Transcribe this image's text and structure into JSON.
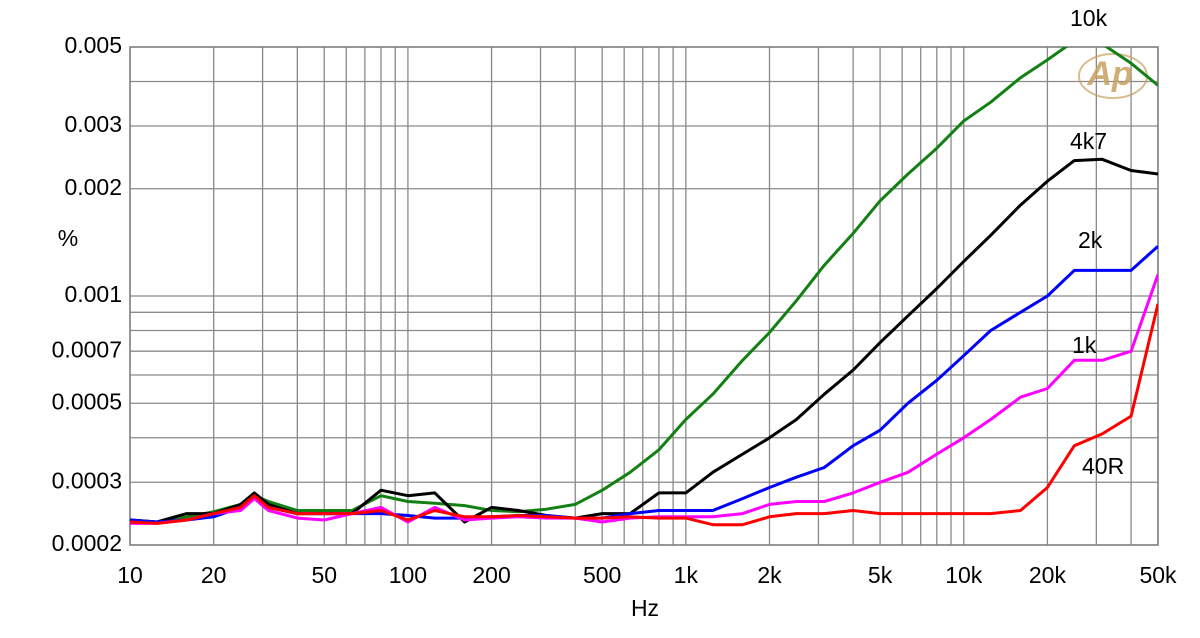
{
  "chart_data": {
    "type": "line",
    "xlabel": "Hz",
    "ylabel": "%",
    "logo": "Ap",
    "xscale": "log",
    "yscale": "log",
    "grid": true,
    "xlim": [
      10,
      50000
    ],
    "ylim": [
      0.0002,
      0.005
    ],
    "xticks": [
      10,
      20,
      50,
      100,
      200,
      500,
      {
        "value": 1000,
        "label": "1k"
      },
      {
        "value": 2000,
        "label": "2k"
      },
      {
        "value": 5000,
        "label": "5k"
      },
      {
        "value": 10000,
        "label": "10k"
      },
      {
        "value": 20000,
        "label": "20k"
      },
      {
        "value": 50000,
        "label": "50k"
      }
    ],
    "xminor": [
      30,
      40,
      60,
      70,
      80,
      90,
      300,
      400,
      600,
      700,
      800,
      900,
      3000,
      4000,
      6000,
      7000,
      8000,
      9000,
      30000,
      40000
    ],
    "yticks": [
      0.0002,
      0.0003,
      0.0005,
      0.0007,
      0.001,
      0.002,
      0.003,
      0.005
    ],
    "yminor": [
      0.0004,
      0.0006,
      0.0008,
      0.0009,
      0.004
    ],
    "x": [
      10,
      12.5,
      16,
      20,
      25,
      28,
      31.5,
      40,
      50,
      63,
      80,
      100,
      125,
      160,
      200,
      250,
      315,
      400,
      500,
      630,
      800,
      1000,
      1250,
      1600,
      2000,
      2500,
      3150,
      4000,
      5000,
      6300,
      8000,
      10000,
      12500,
      16000,
      20000,
      25000,
      31500,
      40000,
      50000
    ],
    "series": [
      {
        "name": "10k",
        "color": "#138013",
        "values": [
          0.000235,
          0.000232,
          0.00024,
          0.000248,
          0.00026,
          0.000275,
          0.000265,
          0.00025,
          0.00025,
          0.00025,
          0.000275,
          0.000265,
          0.000262,
          0.000258,
          0.00025,
          0.000248,
          0.000252,
          0.00026,
          0.000285,
          0.00032,
          0.00037,
          0.00045,
          0.00053,
          0.00066,
          0.00079,
          0.00097,
          0.00122,
          0.0015,
          0.00185,
          0.0022,
          0.0026,
          0.0031,
          0.0035,
          0.0041,
          0.0046,
          0.0052,
          0.0051,
          0.0045,
          0.0039
        ]
      },
      {
        "name": "4k7",
        "color": "#000000",
        "values": [
          0.000235,
          0.000232,
          0.000245,
          0.000245,
          0.00026,
          0.00028,
          0.00026,
          0.000245,
          0.000245,
          0.000245,
          0.000285,
          0.000275,
          0.00028,
          0.000232,
          0.000255,
          0.00025,
          0.000242,
          0.000238,
          0.000245,
          0.000245,
          0.00028,
          0.00028,
          0.00032,
          0.00036,
          0.0004,
          0.00045,
          0.00053,
          0.00062,
          0.00074,
          0.00088,
          0.00105,
          0.00125,
          0.00148,
          0.0018,
          0.0021,
          0.0024,
          0.00242,
          0.00225,
          0.0022
        ]
      },
      {
        "name": "2k",
        "color": "#0000ff",
        "values": [
          0.000235,
          0.000232,
          0.000235,
          0.00024,
          0.000255,
          0.00027,
          0.000255,
          0.000245,
          0.000245,
          0.000245,
          0.000245,
          0.000242,
          0.000238,
          0.000238,
          0.00024,
          0.000242,
          0.000242,
          0.000238,
          0.000238,
          0.000245,
          0.00025,
          0.00025,
          0.00025,
          0.00027,
          0.00029,
          0.00031,
          0.00033,
          0.00038,
          0.00042,
          0.0005,
          0.00058,
          0.00068,
          0.0008,
          0.0009,
          0.001,
          0.00118,
          0.00118,
          0.00118,
          0.00138
        ]
      },
      {
        "name": "1k",
        "color": "#ff00ff",
        "values": [
          0.00023,
          0.00023,
          0.000235,
          0.000245,
          0.00025,
          0.00027,
          0.00025,
          0.000238,
          0.000235,
          0.000245,
          0.000255,
          0.000232,
          0.000255,
          0.000235,
          0.000238,
          0.00024,
          0.000238,
          0.000238,
          0.000232,
          0.000238,
          0.00024,
          0.00024,
          0.00024,
          0.000245,
          0.00026,
          0.000265,
          0.000265,
          0.00028,
          0.0003,
          0.00032,
          0.00036,
          0.0004,
          0.00045,
          0.00052,
          0.00055,
          0.00066,
          0.00066,
          0.0007,
          0.00115
        ]
      },
      {
        "name": "40R",
        "color": "#ff0000",
        "values": [
          0.000232,
          0.00023,
          0.000235,
          0.000245,
          0.000255,
          0.000275,
          0.000255,
          0.000245,
          0.000245,
          0.000245,
          0.00025,
          0.000235,
          0.00025,
          0.00024,
          0.00024,
          0.000242,
          0.00024,
          0.000238,
          0.000238,
          0.00024,
          0.000238,
          0.000238,
          0.000228,
          0.000228,
          0.00024,
          0.000245,
          0.000245,
          0.00025,
          0.000245,
          0.000245,
          0.000245,
          0.000245,
          0.000245,
          0.00025,
          0.00029,
          0.00038,
          0.00041,
          0.00046,
          0.00095
        ]
      }
    ]
  }
}
